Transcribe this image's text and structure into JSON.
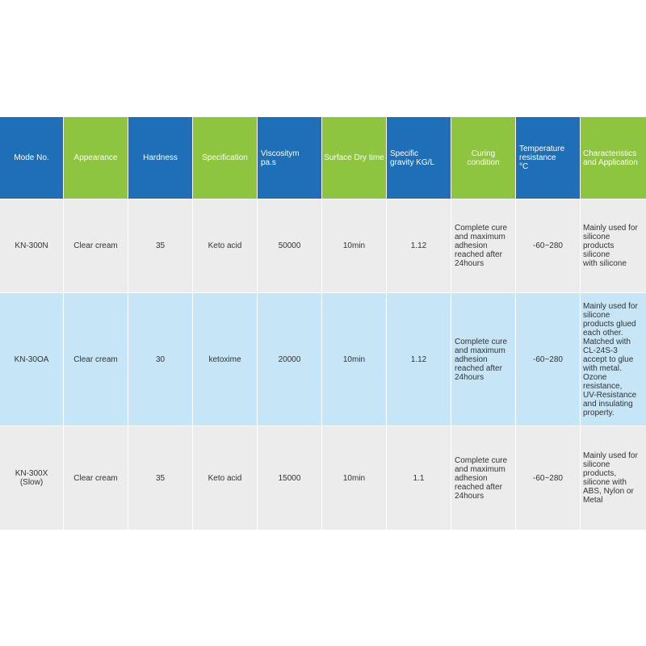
{
  "colors": {
    "header_blue": "#1f6fb8",
    "header_green": "#8dc540",
    "row_gray": "#ececec",
    "row_blue": "#c6e5f6"
  },
  "headers": [
    "Mode No.",
    "Appearance",
    "Hardness",
    "Specification",
    "Viscositym\npa.s",
    "Surface Dry time",
    "Specific\ngravity KG/L",
    "Curing\ncondition",
    "Temperature\nresistance\n°C",
    "Characteristics\nand Application"
  ],
  "rows": [
    {
      "mode": "KN-300N",
      "appearance": "Clear cream",
      "hardness": "35",
      "specification": "Keto acid",
      "viscosity": "50000",
      "dry_time": "10min",
      "gravity": "1.12",
      "curing": "Complete cure\nand maximum\nadhesion\nreached after\n24hours",
      "temperature": "-60~280",
      "application": "Mainly used for\nsilicone\nproducts\nsilicone\nwith silicone"
    },
    {
      "mode": "KN-30OA",
      "appearance": "Clear cream",
      "hardness": "30",
      "specification": "ketoxime",
      "viscosity": "20000",
      "dry_time": "10min",
      "gravity": "1.12",
      "curing": "Complete cure\nand maximum\nadhesion\nreached after\n24hours",
      "temperature": "-60~280",
      "application": "Mainly used for\nsilicone\nproducts glued\n each other.\n Matched with\nCL-24S-3\naccept to glue\nwith metal.\nOzone\nresistance,\nUV-Resistance\nand insulating\nproperty."
    },
    {
      "mode": "KN-300X\n(Slow)",
      "appearance": "Clear cream",
      "hardness": "35",
      "specification": "Keto acid",
      "viscosity": "15000",
      "dry_time": "10min",
      "gravity": "1.1",
      "curing": "Complete cure\nand maximum\nadhesion\nreached after\n24hours",
      "temperature": "-60~280",
      "application": "Mainly used for\nsilicone\nproducts,\nsilicone with\nABS, Nylon or\nMetal"
    }
  ]
}
